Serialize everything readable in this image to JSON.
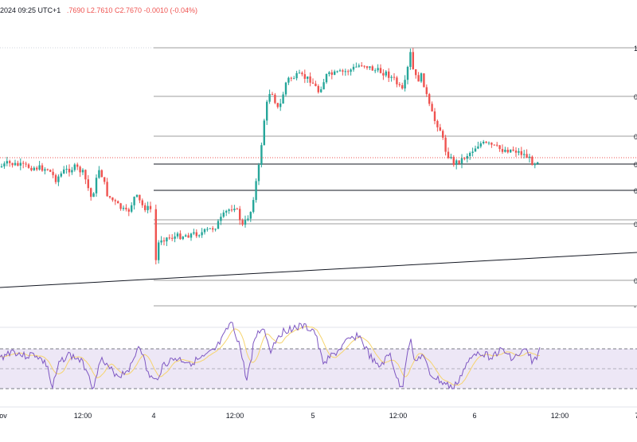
{
  "header": {
    "datetime": "2024 09:25 UTC+1",
    "open_partial": ".7690",
    "low": "L2.7610",
    "close": "C2.7670",
    "change": "-0.0010 (-0.04%)"
  },
  "chart_data": {
    "type": "candlestick",
    "price_axis_visible_labels": [
      "1",
      "0",
      "0",
      "0",
      "0",
      "0",
      "0",
      "-"
    ],
    "time_axis_labels": [
      "ov",
      "12:00",
      "4",
      "12:00",
      "5",
      "12:00",
      "6",
      "12:00",
      "7"
    ],
    "fib_levels_drawn": 9,
    "current_price_line": "dotted red",
    "rsi_panel": {
      "band_upper": 70,
      "band_middle": 50,
      "band_lower": 30,
      "band_fill": "#ede7f6",
      "rsi_color": "#7e57c2",
      "ma_color": "#f6d46e"
    },
    "candles_note": "approximate intraday candles, green up / red down",
    "colors": {
      "up": "#26a69a",
      "down": "#ef5350",
      "fib": "#9e9e9e",
      "trendline": "#131722"
    }
  }
}
